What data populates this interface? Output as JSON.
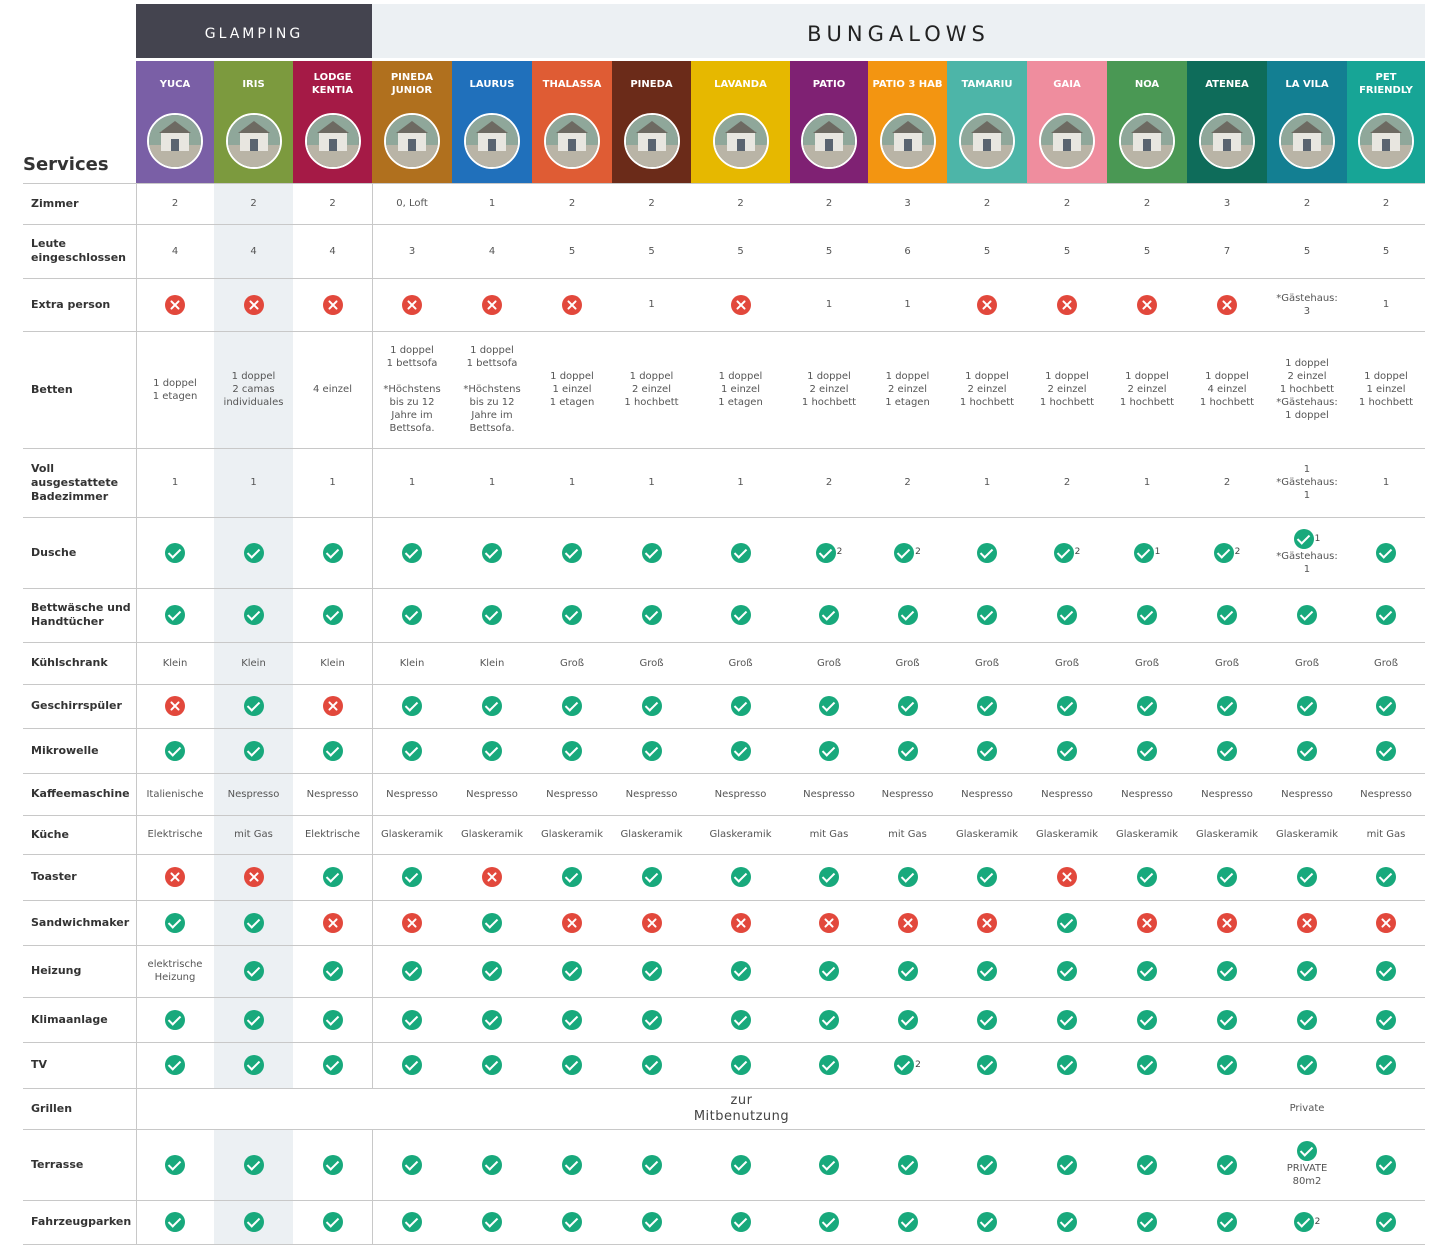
{
  "headers": {
    "glamping": "GLAMPING",
    "bungalows": "BUNGALOWS",
    "services": "Services"
  },
  "columns": [
    {
      "name": "YUCA",
      "color": "#7a5fa6"
    },
    {
      "name": "IRIS",
      "color": "#7c9a3e"
    },
    {
      "name": "LODGE KENTIA",
      "color": "#a51a46"
    },
    {
      "name": "PINEDA JUNIOR",
      "color": "#b0701e"
    },
    {
      "name": "LAURUS",
      "color": "#2070bb"
    },
    {
      "name": "THALASSA",
      "color": "#df5c34"
    },
    {
      "name": "PINEDA",
      "color": "#6b2b19"
    },
    {
      "name": "LAVANDA",
      "color": "#e6b800"
    },
    {
      "name": "PATIO",
      "color": "#7f2173"
    },
    {
      "name": "PATIO 3 HAB",
      "color": "#f39511"
    },
    {
      "name": "TAMARIU",
      "color": "#4db5a8"
    },
    {
      "name": "GAIA",
      "color": "#ef8d9e"
    },
    {
      "name": "NOA",
      "color": "#4a9854"
    },
    {
      "name": "ATENEA",
      "color": "#0e6c5a"
    },
    {
      "name": "LA VILA",
      "color": "#137f92"
    },
    {
      "name": "PET FRIENDLY",
      "color": "#17a596"
    }
  ],
  "rows": [
    {
      "label": "Zimmer",
      "cells": [
        "2",
        "2",
        "2",
        "0, Loft",
        "1",
        "2",
        "2",
        "2",
        "2",
        "3",
        "2",
        "2",
        "2",
        "3",
        "2",
        "2"
      ]
    },
    {
      "label": "Leute eingeschlossen",
      "cells": [
        "4",
        "4",
        "4",
        "3",
        "4",
        "5",
        "5",
        "5",
        "5",
        "6",
        "5",
        "5",
        "5",
        "7",
        "5",
        "5"
      ]
    },
    {
      "label": "Extra person",
      "cells": [
        "no",
        "no",
        "no",
        "no",
        "no",
        "no",
        "1",
        "no",
        "1",
        "1",
        "no",
        "no",
        "no",
        "no",
        "*Gästehaus:\n3",
        "1"
      ]
    },
    {
      "label": "Betten",
      "cells": [
        "1 doppel\n1 etagen",
        "1 doppel\n2 camas\nindividuales",
        "4 einzel",
        "1 doppel\n1 bettsofa\n\n*Höchstens\nbis zu 12\nJahre im\nBettsofa.",
        "1 doppel\n1 bettsofa\n\n*Höchstens\nbis zu 12\nJahre im\nBettsofa.",
        "1 doppel\n1 einzel\n1 etagen",
        "1 doppel\n2 einzel\n1 hochbett",
        "1 doppel\n1 einzel\n1 etagen",
        "1 doppel\n2 einzel\n1 hochbett",
        "1 doppel\n2 einzel\n1 etagen",
        "1 doppel\n2 einzel\n1 hochbett",
        "1 doppel\n2 einzel\n1 hochbett",
        "1 doppel\n2 einzel\n1 hochbett",
        "1 doppel\n4 einzel\n1 hochbett",
        "1 doppel\n2 einzel\n1 hochbett\n*Gästehaus:\n1 doppel",
        "1 doppel\n1 einzel\n1 hochbett"
      ]
    },
    {
      "label": "Voll ausgestattete Badezimmer",
      "cells": [
        "1",
        "1",
        "1",
        "1",
        "1",
        "1",
        "1",
        "1",
        "2",
        "2",
        "1",
        "2",
        "1",
        "2",
        "1\n*Gästehaus:\n1",
        "1"
      ]
    },
    {
      "label": "Dusche",
      "cells": [
        "yes",
        "yes",
        "yes",
        "yes",
        "yes",
        "yes",
        "yes",
        "yes",
        "yes|2",
        "yes|2",
        "yes",
        "yes|2",
        "yes|1",
        "yes|2",
        "yes|1|*Gästehaus:\n1",
        "yes"
      ]
    },
    {
      "label": "Bettwäsche und Handtücher",
      "cells": [
        "yes",
        "yes",
        "yes",
        "yes",
        "yes",
        "yes",
        "yes",
        "yes",
        "yes",
        "yes",
        "yes",
        "yes",
        "yes",
        "yes",
        "yes",
        "yes"
      ]
    },
    {
      "label": "Kühlschrank",
      "cells": [
        "Klein",
        "Klein",
        "Klein",
        "Klein",
        "Klein",
        "Groß",
        "Groß",
        "Groß",
        "Groß",
        "Groß",
        "Groß",
        "Groß",
        "Groß",
        "Groß",
        "Groß",
        "Groß"
      ]
    },
    {
      "label": "Geschirrspüler",
      "cells": [
        "no",
        "yes",
        "no",
        "yes",
        "yes",
        "yes",
        "yes",
        "yes",
        "yes",
        "yes",
        "yes",
        "yes",
        "yes",
        "yes",
        "yes",
        "yes"
      ]
    },
    {
      "label": "Mikrowelle",
      "cells": [
        "yes",
        "yes",
        "yes",
        "yes",
        "yes",
        "yes",
        "yes",
        "yes",
        "yes",
        "yes",
        "yes",
        "yes",
        "yes",
        "yes",
        "yes",
        "yes"
      ]
    },
    {
      "label": "Kaffeemaschine",
      "cells": [
        "Italienische",
        "Nespresso",
        "Nespresso",
        "Nespresso",
        "Nespresso",
        "Nespresso",
        "Nespresso",
        "Nespresso",
        "Nespresso",
        "Nespresso",
        "Nespresso",
        "Nespresso",
        "Nespresso",
        "Nespresso",
        "Nespresso",
        "Nespresso"
      ]
    },
    {
      "label": "Küche",
      "cells": [
        "Elektrische",
        "mit Gas",
        "Elektrische",
        "Glaskeramik",
        "Glaskeramik",
        "Glaskeramik",
        "Glaskeramik",
        "Glaskeramik",
        "mit Gas",
        "mit Gas",
        "Glaskeramik",
        "Glaskeramik",
        "Glaskeramik",
        "Glaskeramik",
        "Glaskeramik",
        "mit Gas"
      ]
    },
    {
      "label": "Toaster",
      "cells": [
        "no",
        "no",
        "yes",
        "yes",
        "no",
        "yes",
        "yes",
        "yes",
        "yes",
        "yes",
        "yes",
        "no",
        "yes",
        "yes",
        "yes",
        "yes"
      ]
    },
    {
      "label": "Sandwichmaker",
      "cells": [
        "yes",
        "yes",
        "no",
        "no",
        "yes",
        "no",
        "no",
        "no",
        "no",
        "no",
        "no",
        "yes",
        "no",
        "no",
        "no",
        "no"
      ]
    },
    {
      "label": "Heizung",
      "cells": [
        "elektrische\nHeizung",
        "yes",
        "yes",
        "yes",
        "yes",
        "yes",
        "yes",
        "yes",
        "yes",
        "yes",
        "yes",
        "yes",
        "yes",
        "yes",
        "yes",
        "yes"
      ]
    },
    {
      "label": "Klimaanlage",
      "cells": [
        "yes",
        "yes",
        "yes",
        "yes",
        "yes",
        "yes",
        "yes",
        "yes",
        "yes",
        "yes",
        "yes",
        "yes",
        "yes",
        "yes",
        "yes",
        "yes"
      ]
    },
    {
      "label": "TV",
      "cells": [
        "yes",
        "yes",
        "yes",
        "yes",
        "yes",
        "yes",
        "yes",
        "yes",
        "yes",
        "yes|2",
        "yes",
        "yes",
        "yes",
        "yes",
        "yes",
        "yes"
      ]
    },
    {
      "label": "Grillen",
      "shared": "zur\nMitbenutzung",
      "lavila": "Private"
    },
    {
      "label": "Terrasse",
      "cells": [
        "yes",
        "yes",
        "yes",
        "yes",
        "yes",
        "yes",
        "yes",
        "yes",
        "yes",
        "yes",
        "yes",
        "yes",
        "yes",
        "yes",
        "yes||PRIVATE\n80m2",
        "yes"
      ]
    },
    {
      "label": "Fahrzeugparken",
      "cells": [
        "yes",
        "yes",
        "yes",
        "yes",
        "yes",
        "yes",
        "yes",
        "yes",
        "yes",
        "yes",
        "yes",
        "yes",
        "yes",
        "yes",
        "yes|2",
        "yes"
      ]
    }
  ]
}
